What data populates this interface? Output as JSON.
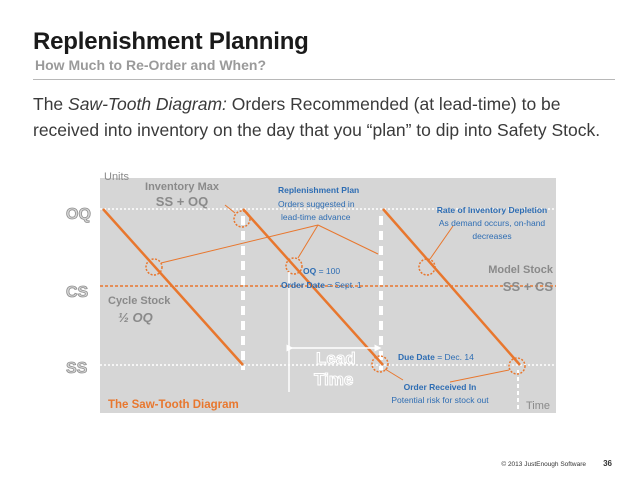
{
  "slide": {
    "title": "Replenishment Planning",
    "subtitle": "How Much to Re-Order and When?",
    "body_intro": "The ",
    "body_italic": "Saw-Tooth Diagram:",
    "body_rest": "   Orders Recommended (at lead-time) to be received into inventory on the day that you “plan” to dip into Safety Stock."
  },
  "diagram": {
    "units_label": "Units",
    "time_label": "Time",
    "levels": {
      "oq": "OQ",
      "cs": "CS",
      "ss": "SS"
    },
    "inventory_max": {
      "title": "Inventory Max",
      "value": "SS + OQ"
    },
    "cycle_stock": {
      "title": "Cycle Stock",
      "value": "½ OQ"
    },
    "model_stock": {
      "title": "Model Stock",
      "value": "SS + CS"
    },
    "replenishment_plan": {
      "title": "Replenishment Plan",
      "line1": "Orders suggested  in",
      "line2": "lead-time advance"
    },
    "depletion": {
      "title": "Rate of Inventory Depletion",
      "line1": "As demand occurs, on-hand",
      "line2": "decreases"
    },
    "order_qty": {
      "label": "OQ",
      "value": " = 100"
    },
    "order_date": {
      "label": "Order Date",
      "value": " = Sept. 1"
    },
    "lead_time": {
      "line1": "Lead",
      "line2": "Time"
    },
    "due_date": {
      "label": "Due Date",
      "value": " =  Dec. 14"
    },
    "order_received": {
      "title": "Order Received In",
      "note": "Potential risk for stock out"
    },
    "caption": "The Saw-Tooth Diagram",
    "colors": {
      "accent": "#E8772E",
      "blue": "#2E6DB3",
      "panel": "#D6D6D6",
      "gray_text": "#8A8A8A"
    }
  },
  "footer": {
    "copyright": "© 2013 JustEnough Software",
    "page_number": "36"
  }
}
